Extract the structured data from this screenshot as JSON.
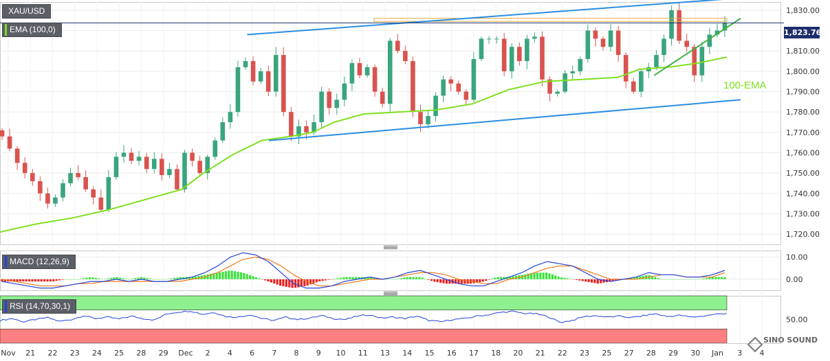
{
  "symbol": "XAU/USD",
  "price_badge": "1,823.76",
  "indicators": {
    "ema": "EMA (100,0)",
    "macd": "MACD (12,26,9)",
    "rsi": "RSI (14,70,30,1)"
  },
  "annotations": {
    "ema_text": "100-EMA"
  },
  "watermark": "SINO SOUND",
  "colors": {
    "up": "#3aa57d",
    "down": "#d9534f",
    "ema": "#7fe01f",
    "trendline": "#2a8de3",
    "triangle": "#44b048",
    "resistance": "#e3a93a",
    "macd_line": "#2341d9",
    "signal_line": "#f07a1a",
    "hist_pos": "#3ce33c",
    "hist_neg": "#e82222",
    "rsi_line": "#2341d9",
    "rsi_overbought": "#8ef08e",
    "rsi_oversold": "#ff8080",
    "current_price_line": "#1c2f6b"
  },
  "chart_data": [
    {
      "type": "candlestick",
      "title": "XAU/USD",
      "x_labels": [
        "Nov",
        "21",
        "22",
        "23",
        "24",
        "25",
        "28",
        "29",
        "Dec",
        "2",
        "4",
        "6",
        "7",
        "8",
        "9",
        "10",
        "11",
        "13",
        "14",
        "15",
        "16",
        "17",
        "18",
        "20",
        "21",
        "22",
        "23",
        "25",
        "27",
        "28",
        "29",
        "30",
        "Jan",
        "3",
        "4"
      ],
      "ylim": [
        1715,
        1834
      ],
      "y_ticks": [
        1720,
        1730,
        1740,
        1750,
        1760,
        1770,
        1780,
        1790,
        1800,
        1810,
        1820,
        1830
      ],
      "y_tick_labels": [
        "1,720.00",
        "1,730.00",
        "1,740.00",
        "1,750.00",
        "1,760.00",
        "1,770.00",
        "1,780.00",
        "1,790.00",
        "1,800.00",
        "1,810.00",
        "1,820.00",
        "1,830.00"
      ],
      "current_price": 1823.76,
      "close_path": [
        1768,
        1762,
        1755,
        1750,
        1746,
        1740,
        1735,
        1738,
        1745,
        1750,
        1748,
        1742,
        1738,
        1732,
        1748,
        1758,
        1760,
        1756,
        1758,
        1752,
        1757,
        1749,
        1752,
        1742,
        1760,
        1756,
        1750,
        1758,
        1766,
        1775,
        1780,
        1802,
        1805,
        1795,
        1800,
        1790,
        1808,
        1780,
        1768,
        1773,
        1770,
        1775,
        1790,
        1782,
        1786,
        1794,
        1804,
        1798,
        1802,
        1790,
        1784,
        1815,
        1810,
        1805,
        1780,
        1774,
        1778,
        1788,
        1796,
        1794,
        1790,
        1786,
        1806,
        1816,
        1816,
        1816,
        1800,
        1812,
        1805,
        1816,
        1817,
        1796,
        1789,
        1790,
        1799,
        1800,
        1806,
        1820,
        1816,
        1812,
        1820,
        1808,
        1795,
        1790,
        1800,
        1802,
        1808,
        1816,
        1830,
        1815,
        1812,
        1798,
        1812,
        1818,
        1820,
        1823.76
      ],
      "overlays": {
        "ema_100": [
          [
            0,
            1721
          ],
          [
            0.05,
            1725
          ],
          [
            0.1,
            1728
          ],
          [
            0.15,
            1732
          ],
          [
            0.2,
            1737
          ],
          [
            0.25,
            1742
          ],
          [
            0.28,
            1750
          ],
          [
            0.32,
            1759
          ],
          [
            0.36,
            1766
          ],
          [
            0.4,
            1768
          ],
          [
            0.43,
            1770
          ],
          [
            0.46,
            1775
          ],
          [
            0.5,
            1779
          ],
          [
            0.55,
            1780
          ],
          [
            0.6,
            1781
          ],
          [
            0.65,
            1784
          ],
          [
            0.7,
            1791
          ],
          [
            0.75,
            1795
          ],
          [
            0.8,
            1796
          ],
          [
            0.85,
            1797
          ],
          [
            0.88,
            1801
          ],
          [
            0.92,
            1802
          ],
          [
            0.96,
            1804
          ],
          [
            1.0,
            1807
          ]
        ],
        "upper_trendline": [
          [
            0.34,
            1818
          ],
          [
            1.0,
            1836
          ]
        ],
        "lower_trendline": [
          [
            0.37,
            1766
          ],
          [
            1.0,
            1786
          ]
        ],
        "triangle_support": [
          [
            0.9,
            1798
          ],
          [
            1.0,
            1826
          ]
        ],
        "resistance_zone": [
          1824.5,
          1826
        ]
      }
    },
    {
      "type": "line",
      "title": "MACD (12,26,9)",
      "ylim": [
        -5,
        13
      ],
      "y_ticks": [
        0,
        10
      ],
      "y_tick_labels": [
        "0.00",
        "10.00"
      ],
      "series": [
        {
          "name": "macd",
          "values": [
            -1,
            -2,
            -3,
            -4,
            -4,
            -3,
            -2,
            -1,
            -1,
            0,
            -1,
            0,
            -1,
            -1,
            0,
            1,
            3,
            6,
            10,
            12,
            11,
            8,
            3,
            -2,
            -4,
            -4,
            -3,
            -1,
            0,
            1,
            0,
            1,
            3,
            4,
            2,
            0,
            -2,
            -3,
            -3,
            -1,
            1,
            3,
            6,
            8,
            7,
            6,
            3,
            0,
            -1,
            0,
            1,
            3,
            2,
            2,
            1,
            1,
            2,
            4
          ]
        },
        {
          "name": "signal",
          "values": [
            0,
            -1,
            -2,
            -3,
            -3,
            -3,
            -2,
            -2,
            -1,
            -1,
            -1,
            -1,
            -1,
            -1,
            -1,
            0,
            1,
            3,
            6,
            9,
            10,
            9,
            6,
            2,
            -1,
            -3,
            -3,
            -2,
            -1,
            0,
            0,
            1,
            2,
            3,
            3,
            2,
            0,
            -1,
            -2,
            -2,
            0,
            1,
            3,
            5,
            6,
            6,
            4,
            2,
            0,
            0,
            0,
            1,
            2,
            2,
            1,
            1,
            1,
            3
          ]
        },
        {
          "name": "histogram",
          "values": [
            -1,
            -1,
            -1,
            -1,
            -1,
            0,
            0,
            1,
            0,
            1,
            0,
            1,
            0,
            0,
            1,
            1,
            2,
            3,
            4,
            3,
            1,
            -1,
            -3,
            -4,
            -3,
            -1,
            0,
            1,
            1,
            1,
            0,
            0,
            1,
            1,
            -1,
            -2,
            -2,
            -2,
            -1,
            1,
            1,
            2,
            3,
            3,
            1,
            0,
            -1,
            -2,
            -1,
            0,
            1,
            2,
            0,
            0,
            0,
            0,
            1,
            1
          ]
        }
      ]
    },
    {
      "type": "line",
      "title": "RSI (14,70,30,1)",
      "ylim": [
        0,
        100
      ],
      "y_ticks": [
        50
      ],
      "y_tick_labels": [
        "50.00"
      ],
      "overbought": 70,
      "oversold": 30,
      "series": [
        {
          "name": "rsi",
          "values": [
            48,
            52,
            45,
            50,
            54,
            46,
            50,
            58,
            52,
            55,
            51,
            57,
            52,
            49,
            62,
            66,
            68,
            61,
            65,
            56,
            55,
            60,
            52,
            48,
            55,
            50,
            53,
            58,
            52,
            50,
            57,
            60,
            53,
            55,
            52,
            57,
            48,
            45,
            50,
            52,
            57,
            60,
            65,
            67,
            63,
            62,
            56,
            44,
            48,
            56,
            58,
            55,
            57,
            54,
            58,
            62,
            56,
            59,
            55,
            57,
            61,
            63
          ]
        }
      ]
    }
  ]
}
